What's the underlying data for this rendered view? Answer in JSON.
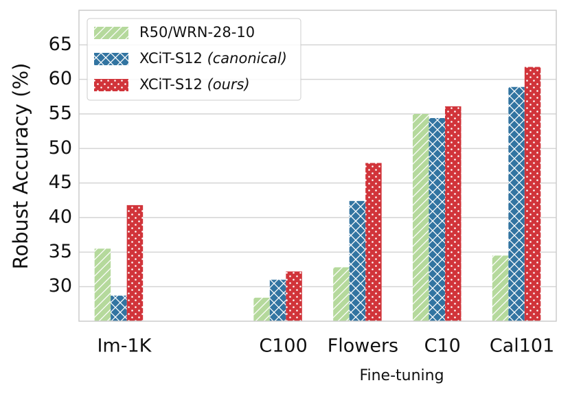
{
  "chart_data": {
    "type": "bar",
    "xlabel": "Fine-tuning",
    "ylabel": "Robust Accuracy (%)",
    "categories": [
      "Im-1K",
      null,
      "C100",
      "Flowers",
      "C10",
      "Cal101"
    ],
    "series": [
      {
        "name": "R50/WRN-28-10",
        "color": "#b5d99c",
        "values": [
          35.5,
          null,
          28.4,
          32.8,
          55.0,
          34.5
        ]
      },
      {
        "name": "XCiT-S12 (canonical)",
        "color": "#3274a1",
        "values": [
          28.7,
          null,
          31.0,
          42.4,
          54.4,
          58.9
        ]
      },
      {
        "name": "XCiT-S12 (ours)",
        "color": "#d1343a",
        "values": [
          41.8,
          null,
          32.2,
          47.9,
          56.1,
          61.8
        ]
      }
    ],
    "ylim": [
      25,
      70
    ],
    "yticks": [
      30,
      35,
      40,
      45,
      50,
      55,
      60,
      65
    ],
    "grid": true,
    "legend": "upper left"
  }
}
